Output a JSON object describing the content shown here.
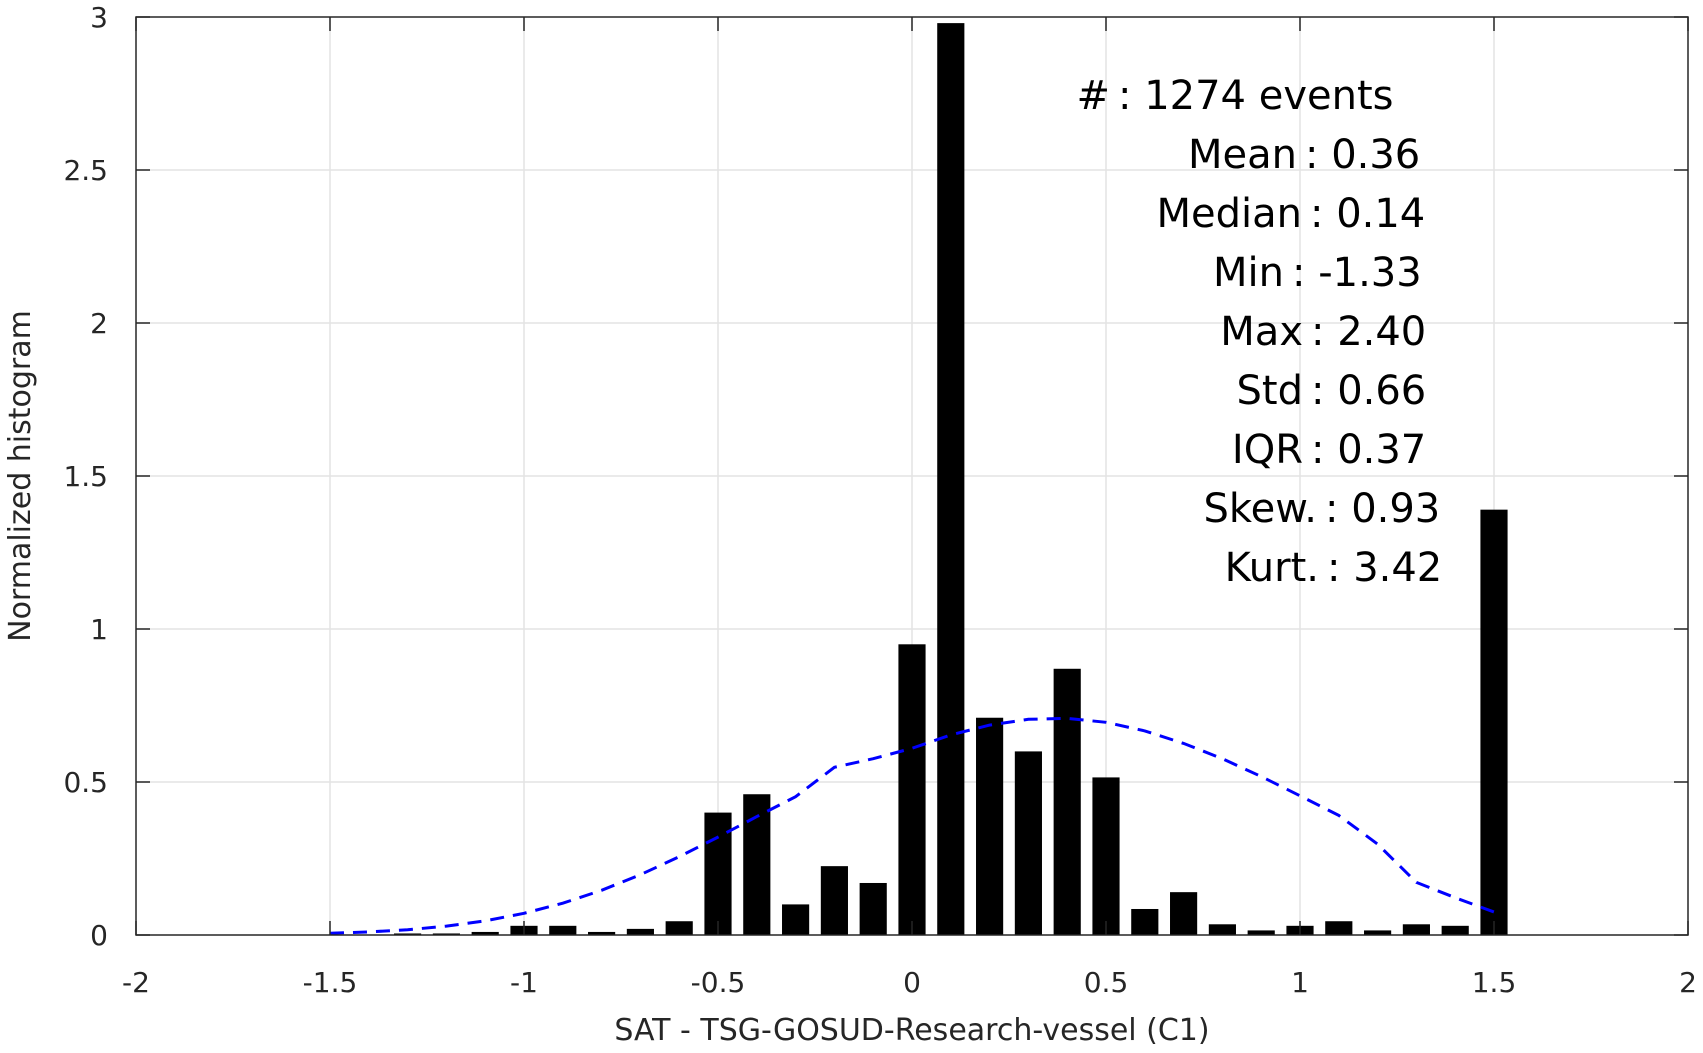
{
  "chart_data": {
    "type": "bar",
    "xlabel": "SAT - TSG-GOSUD-Research-vessel (C1)",
    "ylabel": "Normalized histogram",
    "xlim": [
      -2,
      2
    ],
    "ylim": [
      0,
      3
    ],
    "grid": true,
    "x_ticks": [
      -2,
      -1.5,
      -1,
      -0.5,
      0,
      0.5,
      1,
      1.5,
      2
    ],
    "x_tick_labels": [
      "-2",
      "-1.5",
      "-1",
      "-0.5",
      "0",
      "0.5",
      "1",
      "1.5",
      "2"
    ],
    "y_ticks": [
      0,
      0.5,
      1,
      1.5,
      2,
      2.5,
      3
    ],
    "y_tick_labels": [
      "0",
      "0.5",
      "1",
      "1.5",
      "2",
      "2.5",
      "3"
    ],
    "bar_width": 0.07,
    "bars": {
      "x": [
        -1.3,
        -1.2,
        -1.1,
        -1.0,
        -0.9,
        -0.8,
        -0.7,
        -0.6,
        -0.5,
        -0.4,
        -0.3,
        -0.2,
        -0.1,
        0.0,
        0.1,
        0.2,
        0.3,
        0.4,
        0.5,
        0.6,
        0.7,
        0.8,
        0.9,
        1.0,
        1.1,
        1.2,
        1.3,
        1.4,
        1.5
      ],
      "y": [
        0.005,
        0.005,
        0.01,
        0.03,
        0.03,
        0.01,
        0.02,
        0.045,
        0.4,
        0.46,
        0.1,
        0.225,
        0.17,
        0.95,
        2.98,
        0.71,
        0.6,
        0.87,
        0.515,
        0.085,
        0.14,
        0.035,
        0.015,
        0.03,
        0.045,
        0.015,
        0.035,
        0.03,
        1.39
      ],
      "color": "#000000"
    },
    "fit": {
      "kind": "normal",
      "style": "dashed",
      "color": "#0000ff",
      "x": [
        -1.5,
        -1.4,
        -1.3,
        -1.2,
        -1.1,
        -1.0,
        -0.9,
        -0.8,
        -0.7,
        -0.6,
        -0.5,
        -0.4,
        -0.3,
        -0.2,
        -0.1,
        0.0,
        0.1,
        0.2,
        0.3,
        0.4,
        0.5,
        0.6,
        0.7,
        0.8,
        0.9,
        1.0,
        1.1,
        1.2,
        1.3,
        1.4,
        1.5
      ],
      "y": [
        0.0055,
        0.01,
        0.017,
        0.029,
        0.046,
        0.071,
        0.104,
        0.146,
        0.197,
        0.256,
        0.32,
        0.387,
        0.452,
        0.548,
        0.576,
        0.61,
        0.654,
        0.686,
        0.705,
        0.708,
        0.695,
        0.667,
        0.626,
        0.576,
        0.518,
        0.455,
        0.391,
        0.297,
        0.172,
        0.122,
        0.075
      ]
    },
    "stats": [
      {
        "label": "#  ",
        "value": ": 1274 events"
      },
      {
        "label": "Mean",
        "value": ": 0.36"
      },
      {
        "label": "Median",
        "value": ": 0.14"
      },
      {
        "label": "Min",
        "value": ": -1.33"
      },
      {
        "label": "Max",
        "value": ": 2.40"
      },
      {
        "label": "Std",
        "value": ": 0.66"
      },
      {
        "label": "IQR",
        "value": ": 0.37"
      },
      {
        "label": "Skew.",
        "value": ": 0.93"
      },
      {
        "label": "Kurt.",
        "value": ": 3.42"
      }
    ]
  }
}
